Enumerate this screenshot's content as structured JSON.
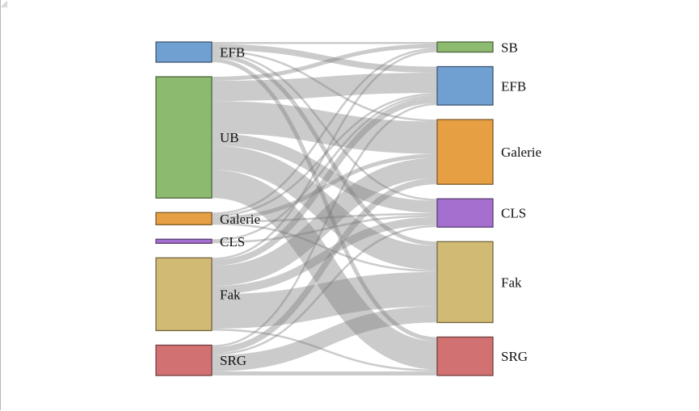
{
  "chart_data": {
    "type": "sankey",
    "title": "",
    "colors": {
      "SB": "#8cba6f",
      "EFB": "#709fd2",
      "UB": "#8cba6f",
      "Galerie": "#e6a043",
      "CLS": "#a46fcf",
      "Fak": "#d1ba74",
      "SRG": "#d17171",
      "link": "#777777"
    },
    "sources": [
      {
        "id": "EFB",
        "label": "EFB",
        "value": 10
      },
      {
        "id": "UB",
        "label": "UB",
        "value": 60
      },
      {
        "id": "Galerie",
        "label": "Galerie",
        "value": 6
      },
      {
        "id": "CLS",
        "label": "CLS",
        "value": 2
      },
      {
        "id": "Fak",
        "label": "Fak",
        "value": 36
      },
      {
        "id": "SRG",
        "label": "SRG",
        "value": 15
      }
    ],
    "targets": [
      {
        "id": "SB",
        "label": "SB",
        "value": 5
      },
      {
        "id": "EFB",
        "label": "EFB",
        "value": 19
      },
      {
        "id": "Galerie",
        "label": "Galerie",
        "value": 32
      },
      {
        "id": "CLS",
        "label": "CLS",
        "value": 14
      },
      {
        "id": "Fak",
        "label": "Fak",
        "value": 40
      },
      {
        "id": "SRG",
        "label": "SRG",
        "value": 19
      }
    ],
    "links": [
      {
        "source": "EFB",
        "target": "SB",
        "value": 1
      },
      {
        "source": "EFB",
        "target": "EFB",
        "value": 3
      },
      {
        "source": "EFB",
        "target": "Galerie",
        "value": 1
      },
      {
        "source": "EFB",
        "target": "CLS",
        "value": 1
      },
      {
        "source": "EFB",
        "target": "Fak",
        "value": 2
      },
      {
        "source": "EFB",
        "target": "SRG",
        "value": 2
      },
      {
        "source": "UB",
        "target": "SB",
        "value": 2
      },
      {
        "source": "UB",
        "target": "EFB",
        "value": 10
      },
      {
        "source": "UB",
        "target": "Galerie",
        "value": 16
      },
      {
        "source": "UB",
        "target": "CLS",
        "value": 6
      },
      {
        "source": "UB",
        "target": "Fak",
        "value": 12
      },
      {
        "source": "UB",
        "target": "SRG",
        "value": 14
      },
      {
        "source": "Galerie",
        "target": "SB",
        "value": 1
      },
      {
        "source": "Galerie",
        "target": "EFB",
        "value": 1
      },
      {
        "source": "Galerie",
        "target": "Galerie",
        "value": 2
      },
      {
        "source": "Galerie",
        "target": "CLS",
        "value": 1
      },
      {
        "source": "Galerie",
        "target": "Fak",
        "value": 1
      },
      {
        "source": "CLS",
        "target": "EFB",
        "value": 1
      },
      {
        "source": "CLS",
        "target": "CLS",
        "value": 1
      },
      {
        "source": "Fak",
        "target": "SB",
        "value": 1
      },
      {
        "source": "Fak",
        "target": "EFB",
        "value": 3
      },
      {
        "source": "Fak",
        "target": "Galerie",
        "value": 10
      },
      {
        "source": "Fak",
        "target": "CLS",
        "value": 4
      },
      {
        "source": "Fak",
        "target": "Fak",
        "value": 17
      },
      {
        "source": "Fak",
        "target": "SRG",
        "value": 1
      },
      {
        "source": "SRG",
        "target": "EFB",
        "value": 1
      },
      {
        "source": "SRG",
        "target": "Galerie",
        "value": 3
      },
      {
        "source": "SRG",
        "target": "CLS",
        "value": 1
      },
      {
        "source": "SRG",
        "target": "Fak",
        "value": 8
      },
      {
        "source": "SRG",
        "target": "SRG",
        "value": 2
      }
    ]
  }
}
